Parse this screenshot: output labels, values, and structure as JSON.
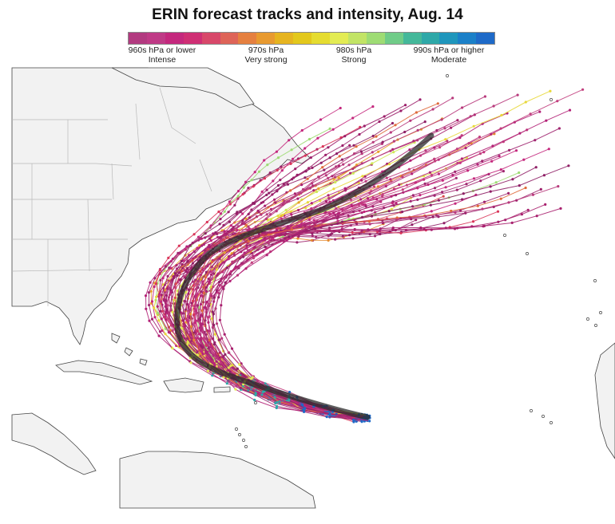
{
  "title": "ERIN forecast tracks and intensity, Aug. 14",
  "legend": {
    "colors": [
      "#b23a80",
      "#bf3a86",
      "#c4287d",
      "#cf2f74",
      "#d8486a",
      "#de6458",
      "#e58040",
      "#e89a30",
      "#e6b420",
      "#e3c81c",
      "#e5dc30",
      "#e3ec54",
      "#c2e466",
      "#9edc74",
      "#70cc88",
      "#44b89a",
      "#2ea8a8",
      "#1f96bc",
      "#1b80c8",
      "#1e6ac8"
    ],
    "labels": [
      {
        "pressure": "960s hPa or lower",
        "category": "Intense"
      },
      {
        "pressure": "970s hPa",
        "category": "Very strong"
      },
      {
        "pressure": "980s hPa",
        "category": "Strong"
      },
      {
        "pressure": "990s hPa or higher",
        "category": "Moderate"
      }
    ]
  },
  "map_style": {
    "land": "#f2f2f2",
    "border": "#b9b9b9",
    "coast": "#444444",
    "consensus": "#2a2a2a"
  },
  "tracks": {
    "count": 70,
    "colors": [
      "#a8206e",
      "#b32277",
      "#c4287d",
      "#9c1f6a",
      "#b83a7c",
      "#c23f7e",
      "#a02670",
      "#8f1f66"
    ],
    "accent": [
      "#e8a02a",
      "#e5c81e",
      "#e0e64a",
      "#d8484c",
      "#df6a3c",
      "#cfe858",
      "#e8d83a",
      "#e48a30",
      "#9edc74",
      "#d9365a"
    ]
  }
}
